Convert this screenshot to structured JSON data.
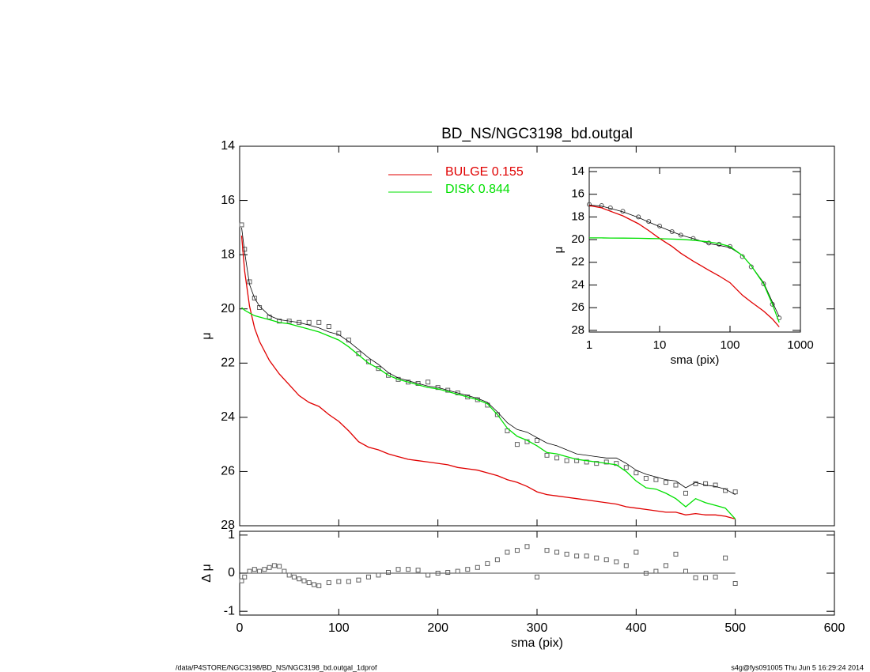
{
  "chart_data": [
    {
      "type": "line",
      "title": "BD_NS/NGC3198_bd.outgal",
      "ylabel": "μ",
      "legend": "top-center",
      "x": [
        2,
        5,
        10,
        15,
        20,
        30,
        40,
        50,
        60,
        70,
        80,
        90,
        100,
        110,
        120,
        130,
        140,
        150,
        160,
        170,
        180,
        190,
        200,
        210,
        220,
        230,
        240,
        250,
        260,
        270,
        280,
        290,
        300,
        310,
        320,
        330,
        340,
        350,
        360,
        370,
        380,
        390,
        400,
        410,
        420,
        430,
        440,
        450,
        460,
        470,
        480,
        490,
        500
      ],
      "xlim": [
        0,
        600
      ],
      "xticks": [
        0,
        100,
        200,
        300,
        400,
        500,
        600
      ],
      "ylim": [
        28,
        14
      ],
      "yticks": [
        14,
        16,
        18,
        20,
        22,
        24,
        26,
        28
      ],
      "series": [
        {
          "color": "#606060",
          "marker": "square",
          "values": [
            16.9,
            17.8,
            19.0,
            19.6,
            19.95,
            20.3,
            20.45,
            20.45,
            20.5,
            20.5,
            20.5,
            20.65,
            20.9,
            21.15,
            21.65,
            21.95,
            22.2,
            22.45,
            22.6,
            22.7,
            22.75,
            22.7,
            22.9,
            23.0,
            23.1,
            23.25,
            23.35,
            23.55,
            23.9,
            24.5,
            25.0,
            24.9,
            24.85,
            25.4,
            25.5,
            25.6,
            25.6,
            25.65,
            25.7,
            25.65,
            25.7,
            25.85,
            26.05,
            26.25,
            26.3,
            26.4,
            26.5,
            26.8,
            26.45,
            26.45,
            26.5,
            26.7,
            26.75
          ]
        },
        {
          "color": "#000000",
          "values": [
            17.0,
            17.9,
            19.1,
            19.6,
            19.9,
            20.25,
            20.4,
            20.45,
            20.5,
            20.6,
            20.7,
            20.85,
            20.95,
            21.2,
            21.5,
            21.8,
            22.05,
            22.35,
            22.55,
            22.65,
            22.75,
            22.85,
            22.9,
            23.0,
            23.1,
            23.2,
            23.3,
            23.45,
            23.8,
            24.2,
            24.45,
            24.55,
            24.75,
            24.95,
            25.05,
            25.2,
            25.35,
            25.4,
            25.45,
            25.5,
            25.5,
            25.7,
            25.95,
            26.1,
            26.2,
            26.3,
            26.35,
            26.6,
            26.4,
            26.5,
            26.55,
            26.65,
            26.85
          ]
        },
        {
          "name": "BULGE  0.155",
          "color": "#e00000",
          "values": [
            17.3,
            18.6,
            19.9,
            20.7,
            21.2,
            21.9,
            22.4,
            22.8,
            23.2,
            23.45,
            23.6,
            23.9,
            24.15,
            24.5,
            24.9,
            25.1,
            25.2,
            25.35,
            25.45,
            25.55,
            25.6,
            25.65,
            25.7,
            25.75,
            25.85,
            25.9,
            25.95,
            26.05,
            26.15,
            26.3,
            26.4,
            26.55,
            26.75,
            26.85,
            26.9,
            26.95,
            27.0,
            27.05,
            27.1,
            27.15,
            27.2,
            27.3,
            27.35,
            27.4,
            27.45,
            27.5,
            27.5,
            27.6,
            27.55,
            27.6,
            27.6,
            27.65,
            27.75
          ]
        },
        {
          "name": "DISK  0.844",
          "color": "#00e000",
          "values": [
            19.95,
            20.05,
            20.15,
            20.25,
            20.3,
            20.4,
            20.5,
            20.55,
            20.65,
            20.75,
            20.85,
            21.0,
            21.15,
            21.4,
            21.7,
            22.0,
            22.2,
            22.45,
            22.6,
            22.7,
            22.8,
            22.9,
            22.95,
            23.05,
            23.15,
            23.25,
            23.35,
            23.5,
            23.9,
            24.4,
            24.7,
            24.85,
            25.05,
            25.3,
            25.35,
            25.45,
            25.55,
            25.6,
            25.65,
            25.7,
            25.75,
            26.0,
            26.35,
            26.6,
            26.65,
            26.8,
            27.0,
            27.3,
            27.0,
            27.15,
            27.25,
            27.35,
            27.75
          ]
        }
      ]
    },
    {
      "type": "scatter",
      "ylabel": "Δ μ",
      "xlabel": "sma (pix)",
      "color": "#606060",
      "x": [
        2,
        5,
        10,
        15,
        20,
        25,
        30,
        35,
        40,
        45,
        50,
        55,
        60,
        65,
        70,
        75,
        80,
        90,
        100,
        110,
        120,
        130,
        140,
        150,
        160,
        170,
        180,
        190,
        200,
        210,
        220,
        230,
        240,
        250,
        260,
        270,
        280,
        290,
        300,
        310,
        320,
        330,
        340,
        350,
        360,
        370,
        380,
        390,
        400,
        410,
        420,
        430,
        440,
        450,
        460,
        470,
        480,
        490,
        500
      ],
      "values": [
        -0.2,
        -0.1,
        0.05,
        0.1,
        0.05,
        0.1,
        0.15,
        0.2,
        0.18,
        0.05,
        -0.05,
        -0.1,
        -0.15,
        -0.2,
        -0.25,
        -0.3,
        -0.33,
        -0.25,
        -0.22,
        -0.22,
        -0.18,
        -0.1,
        -0.05,
        0.02,
        0.1,
        0.1,
        0.08,
        -0.05,
        0.0,
        0.02,
        0.05,
        0.1,
        0.15,
        0.25,
        0.35,
        0.55,
        0.6,
        0.7,
        -0.1,
        0.6,
        0.55,
        0.5,
        0.45,
        0.45,
        0.4,
        0.35,
        0.3,
        0.2,
        0.55,
        0.0,
        0.05,
        0.2,
        0.5,
        0.05,
        -0.12,
        -0.12,
        -0.1,
        0.4,
        -0.27
      ],
      "xlim": [
        0,
        600
      ],
      "xticks": [
        0,
        100,
        200,
        300,
        400,
        500,
        600
      ],
      "ylim": [
        -1.1,
        1.1
      ],
      "yticks": [
        -1,
        0,
        1
      ]
    },
    {
      "type": "line",
      "log_x": true,
      "ylabel": "μ",
      "xlabel": "sma (pix)",
      "x": [
        1,
        1.5,
        2,
        3,
        5,
        7,
        10,
        15,
        20,
        30,
        50,
        70,
        100,
        150,
        200,
        300,
        400,
        500
      ],
      "xlim": [
        1,
        1000
      ],
      "xticks": [
        1,
        10,
        100,
        1000
      ],
      "ylim": [
        28.15,
        13.65
      ],
      "yticks": [
        14,
        16,
        18,
        20,
        22,
        24,
        26,
        28
      ],
      "series": [
        {
          "color": "#505050",
          "marker": "circle",
          "values": [
            16.9,
            17.0,
            17.2,
            17.5,
            18.0,
            18.4,
            18.8,
            19.3,
            19.6,
            19.9,
            20.3,
            20.4,
            20.6,
            21.5,
            22.4,
            23.9,
            25.7,
            26.9
          ]
        },
        {
          "color": "#000000",
          "values": [
            16.95,
            17.05,
            17.25,
            17.55,
            18.05,
            18.45,
            18.85,
            19.3,
            19.6,
            19.9,
            20.35,
            20.5,
            20.7,
            21.4,
            22.3,
            23.8,
            25.5,
            26.8
          ]
        },
        {
          "color": "#e00000",
          "values": [
            17.0,
            17.2,
            17.5,
            17.9,
            18.6,
            19.2,
            19.9,
            20.6,
            21.2,
            21.9,
            22.7,
            23.2,
            23.8,
            24.9,
            25.5,
            26.3,
            27.0,
            27.7
          ]
        },
        {
          "color": "#00e000",
          "values": [
            19.85,
            19.85,
            19.86,
            19.87,
            19.88,
            19.9,
            19.92,
            19.95,
            19.98,
            20.05,
            20.2,
            20.35,
            20.6,
            21.4,
            22.3,
            23.9,
            25.7,
            27.3
          ]
        }
      ]
    }
  ],
  "footer_left": "/data/P4STORE/NGC3198/BD_NS/NGC3198_bd.outgal_1dprof",
  "footer_right": "s4g@fys091005  Thu Jun  5 16:29:24 2014"
}
